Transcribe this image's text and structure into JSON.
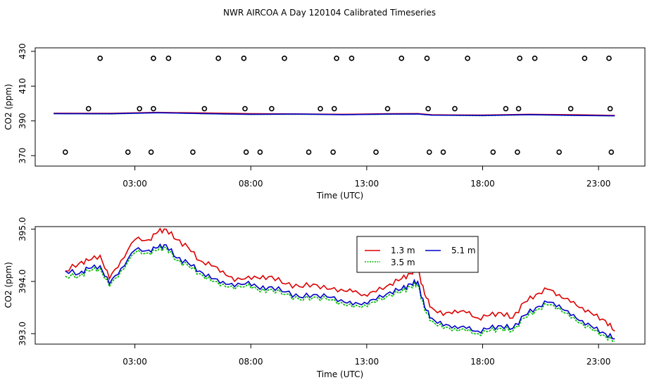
{
  "title": "NWR AIRCOA A  Day 120104  Calibrated Timeseries",
  "colors": {
    "red": "#dd0000",
    "green": "#00bb00",
    "blue": "#0000cc",
    "black": "#000000"
  },
  "chart_data": [
    {
      "type": "scatter+line",
      "xlabel": "Time (UTC)",
      "ylabel": "CO2 (ppm)",
      "xlim": [
        -1.3,
        25.0
      ],
      "ylim": [
        364,
        432
      ],
      "xticks": [
        3,
        8,
        13,
        18,
        23
      ],
      "xtick_labels": [
        "03:00",
        "08:00",
        "13:00",
        "18:00",
        "23:00"
      ],
      "yticks": [
        370,
        390,
        410,
        430
      ],
      "ytick_labels": [
        "370",
        "390",
        "410",
        "430"
      ],
      "calibration_points": [
        {
          "x": 0.0,
          "y": 372
        },
        {
          "x": 1.0,
          "y": 397
        },
        {
          "x": 1.5,
          "y": 426
        },
        {
          "x": 2.7,
          "y": 372
        },
        {
          "x": 3.2,
          "y": 397
        },
        {
          "x": 3.7,
          "y": 372
        },
        {
          "x": 3.8,
          "y": 397
        },
        {
          "x": 3.8,
          "y": 426
        },
        {
          "x": 4.45,
          "y": 426
        },
        {
          "x": 5.5,
          "y": 372
        },
        {
          "x": 6.0,
          "y": 397
        },
        {
          "x": 6.6,
          "y": 426
        },
        {
          "x": 7.7,
          "y": 426
        },
        {
          "x": 7.75,
          "y": 397
        },
        {
          "x": 7.8,
          "y": 372
        },
        {
          "x": 8.4,
          "y": 372
        },
        {
          "x": 8.9,
          "y": 397
        },
        {
          "x": 9.45,
          "y": 426
        },
        {
          "x": 10.5,
          "y": 372
        },
        {
          "x": 11.0,
          "y": 397
        },
        {
          "x": 11.55,
          "y": 372
        },
        {
          "x": 11.6,
          "y": 397
        },
        {
          "x": 11.7,
          "y": 426
        },
        {
          "x": 12.35,
          "y": 426
        },
        {
          "x": 13.4,
          "y": 372
        },
        {
          "x": 13.9,
          "y": 397
        },
        {
          "x": 14.5,
          "y": 426
        },
        {
          "x": 15.6,
          "y": 426
        },
        {
          "x": 15.65,
          "y": 397
        },
        {
          "x": 15.7,
          "y": 372
        },
        {
          "x": 16.3,
          "y": 372
        },
        {
          "x": 16.8,
          "y": 397
        },
        {
          "x": 17.35,
          "y": 426
        },
        {
          "x": 18.45,
          "y": 372
        },
        {
          "x": 19.0,
          "y": 397
        },
        {
          "x": 19.5,
          "y": 372
        },
        {
          "x": 19.55,
          "y": 397
        },
        {
          "x": 19.6,
          "y": 426
        },
        {
          "x": 20.25,
          "y": 426
        },
        {
          "x": 21.3,
          "y": 372
        },
        {
          "x": 21.8,
          "y": 397
        },
        {
          "x": 22.4,
          "y": 426
        },
        {
          "x": 23.45,
          "y": 426
        },
        {
          "x": 23.5,
          "y": 397
        },
        {
          "x": 23.55,
          "y": 372
        }
      ],
      "series": [
        {
          "name": "1.3 m",
          "color": "red",
          "x": [
            -0.5,
            2,
            4,
            6,
            8,
            10,
            12,
            14,
            15.2,
            15.8,
            18,
            20,
            22,
            23.7
          ],
          "values": [
            394.4,
            394.3,
            394.9,
            394.5,
            394.1,
            394.0,
            393.8,
            394.1,
            394.2,
            393.5,
            393.3,
            393.8,
            393.5,
            393.1
          ]
        },
        {
          "name": "3.5 m",
          "color": "green",
          "x": [
            -0.5,
            2,
            4,
            6,
            8,
            10,
            12,
            14,
            15.2,
            15.8,
            18,
            20,
            22,
            23.7
          ],
          "values": [
            394.1,
            394.0,
            394.7,
            394.1,
            393.7,
            393.8,
            393.6,
            393.8,
            393.9,
            393.3,
            393.0,
            393.5,
            393.1,
            392.9
          ]
        },
        {
          "name": "5.1 m",
          "color": "blue",
          "x": [
            -0.5,
            2,
            4,
            6,
            8,
            10,
            12,
            14,
            15.2,
            15.8,
            18,
            20,
            22,
            23.7
          ],
          "values": [
            394.2,
            394.1,
            394.7,
            394.2,
            393.8,
            393.9,
            393.6,
            393.9,
            394.0,
            393.3,
            393.1,
            393.6,
            393.2,
            392.9
          ]
        }
      ]
    },
    {
      "type": "line",
      "xlabel": "Time (UTC)",
      "ylabel": "CO2 (ppm)",
      "xlim": [
        -1.3,
        25.0
      ],
      "ylim": [
        392.8,
        395.05
      ],
      "xticks": [
        3,
        8,
        13,
        18,
        23
      ],
      "xtick_labels": [
        "03:00",
        "08:00",
        "13:00",
        "18:00",
        "23:00"
      ],
      "yticks": [
        393.0,
        394.0,
        395.0
      ],
      "ytick_labels": [
        "393.0",
        "394.0",
        "395.0"
      ],
      "legend": {
        "position": "top-center",
        "entries": [
          {
            "label": "1.3 m",
            "color": "red"
          },
          {
            "label": "5.1 m",
            "color": "blue"
          },
          {
            "label": "3.5 m",
            "color": "green"
          }
        ]
      },
      "series": [
        {
          "name": "1.3 m",
          "color": "red",
          "x": [
            0,
            0.6,
            1.0,
            1.5,
            1.9,
            2.4,
            3.0,
            3.6,
            4.0,
            4.35,
            4.8,
            5.3,
            5.8,
            6.3,
            6.8,
            7.3,
            7.9,
            8.4,
            8.9,
            9.5,
            10.1,
            10.7,
            11.3,
            11.9,
            12.4,
            12.9,
            13.4,
            14.0,
            14.5,
            14.9,
            15.2,
            15.5,
            15.8,
            16.3,
            16.8,
            17.3,
            17.8,
            18.3,
            18.8,
            19.3,
            19.8,
            20.3,
            20.8,
            21.3,
            21.8,
            22.3,
            22.8,
            23.3,
            23.7
          ],
          "values": [
            394.2,
            394.35,
            394.4,
            394.5,
            394.05,
            394.4,
            394.8,
            394.8,
            394.95,
            395.0,
            394.8,
            394.65,
            394.4,
            394.3,
            394.2,
            394.0,
            394.1,
            394.05,
            394.1,
            393.95,
            393.9,
            393.95,
            393.85,
            393.85,
            393.8,
            393.75,
            393.8,
            393.95,
            394.05,
            394.15,
            394.25,
            393.75,
            393.5,
            393.35,
            393.45,
            393.4,
            393.3,
            393.35,
            393.4,
            393.3,
            393.6,
            393.75,
            393.85,
            393.75,
            393.6,
            393.5,
            393.35,
            393.25,
            393.05
          ]
        },
        {
          "name": "3.5 m",
          "color": "green",
          "x": [
            0,
            0.6,
            1.0,
            1.5,
            1.9,
            2.4,
            3.0,
            3.6,
            4.0,
            4.35,
            4.8,
            5.3,
            5.8,
            6.3,
            6.8,
            7.3,
            7.9,
            8.4,
            8.9,
            9.5,
            10.1,
            10.7,
            11.3,
            11.9,
            12.4,
            12.9,
            13.4,
            14.0,
            14.5,
            14.9,
            15.2,
            15.5,
            15.8,
            16.3,
            16.8,
            17.3,
            17.8,
            18.3,
            18.8,
            19.3,
            19.8,
            20.3,
            20.8,
            21.3,
            21.8,
            22.3,
            22.8,
            23.3,
            23.7
          ],
          "values": [
            394.1,
            394.1,
            394.2,
            394.25,
            393.9,
            394.2,
            394.55,
            394.55,
            394.6,
            394.65,
            394.4,
            394.3,
            394.15,
            394.0,
            393.95,
            393.85,
            393.95,
            393.8,
            393.85,
            393.75,
            393.65,
            393.7,
            393.65,
            393.6,
            393.5,
            393.55,
            393.6,
            393.75,
            393.8,
            393.9,
            393.95,
            393.45,
            393.25,
            393.1,
            393.1,
            393.05,
            393.0,
            393.05,
            393.1,
            393.05,
            393.3,
            393.45,
            393.55,
            393.5,
            393.3,
            393.2,
            393.05,
            392.95,
            392.85
          ]
        },
        {
          "name": "5.1 m",
          "color": "blue",
          "x": [
            0,
            0.6,
            1.0,
            1.5,
            1.9,
            2.4,
            3.0,
            3.6,
            4.0,
            4.35,
            4.8,
            5.3,
            5.8,
            6.3,
            6.8,
            7.3,
            7.9,
            8.4,
            8.9,
            9.5,
            10.1,
            10.7,
            11.3,
            11.9,
            12.4,
            12.9,
            13.4,
            14.0,
            14.5,
            14.9,
            15.2,
            15.5,
            15.8,
            16.3,
            16.8,
            17.3,
            17.8,
            18.3,
            18.8,
            19.3,
            19.8,
            20.3,
            20.8,
            21.3,
            21.8,
            22.3,
            22.8,
            23.3,
            23.7
          ],
          "values": [
            394.2,
            394.15,
            394.25,
            394.3,
            393.95,
            394.25,
            394.6,
            394.6,
            394.65,
            394.7,
            394.45,
            394.35,
            394.2,
            394.05,
            394.0,
            393.9,
            394.0,
            393.85,
            393.9,
            393.8,
            393.7,
            393.75,
            393.7,
            393.65,
            393.55,
            393.6,
            393.65,
            393.8,
            393.85,
            393.95,
            394.0,
            393.5,
            393.3,
            393.15,
            393.15,
            393.1,
            393.05,
            393.1,
            393.15,
            393.1,
            393.35,
            393.5,
            393.6,
            393.55,
            393.35,
            393.25,
            393.1,
            393.0,
            392.9
          ]
        }
      ]
    }
  ]
}
